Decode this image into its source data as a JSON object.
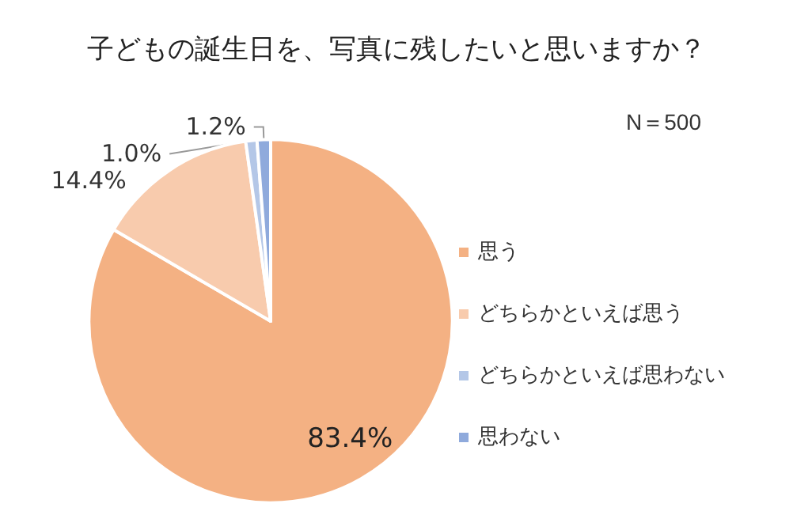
{
  "chart_data": {
    "type": "pie",
    "title": "子どもの誕生日を、写真に残したいと思いますか？",
    "categories": [
      "思う",
      "どちらかといえば思う",
      "どちらかといえば思わない",
      "思わない"
    ],
    "values": [
      83.4,
      14.4,
      1.0,
      1.2
    ],
    "colors": [
      "#f4b183",
      "#f8cbad",
      "#b4c7e7",
      "#8faadc"
    ],
    "value_labels": [
      "83.4%",
      "14.4%",
      "1.0%",
      "1.2%"
    ],
    "annotations": [
      "N＝500"
    ],
    "legend": "right"
  }
}
